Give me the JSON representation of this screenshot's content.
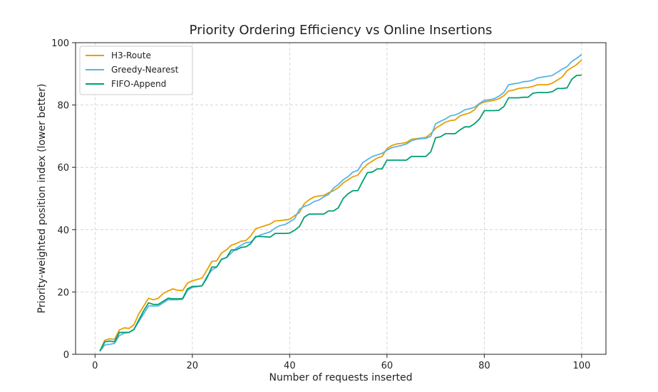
{
  "chart_data": {
    "type": "line",
    "title": "Priority Ordering Efficiency vs Online Insertions",
    "xlabel": "Number of requests inserted",
    "ylabel": "Priority-weighted position index (lower better)",
    "xlim": [
      1,
      100
    ],
    "ylim": [
      0,
      100
    ],
    "xticks": [
      0,
      20,
      40,
      60,
      80,
      100
    ],
    "yticks": [
      0,
      20,
      40,
      60,
      80,
      100
    ],
    "grid": true,
    "legend_position": "top-left",
    "series": [
      {
        "name": "H3-Route",
        "color": "#E69F00",
        "x": [
          1,
          2,
          3,
          4,
          5,
          6,
          7,
          8,
          9,
          10,
          11,
          12,
          13,
          14,
          15,
          16,
          17,
          18,
          19,
          20,
          21,
          22,
          23,
          24,
          25,
          26,
          27,
          28,
          29,
          30,
          31,
          32,
          33,
          34,
          35,
          36,
          37,
          38,
          39,
          40,
          41,
          42,
          43,
          44,
          45,
          46,
          47,
          48,
          49,
          50,
          51,
          52,
          53,
          54,
          55,
          56,
          57,
          58,
          59,
          60,
          61,
          62,
          63,
          64,
          65,
          66,
          67,
          68,
          69,
          70,
          71,
          72,
          73,
          74,
          75,
          76,
          77,
          78,
          79,
          80,
          81,
          82,
          83,
          84,
          85,
          86,
          87,
          88,
          89,
          90,
          91,
          92,
          93,
          94,
          95,
          96,
          97,
          98,
          99,
          100
        ],
        "values": [
          1.0,
          4.5,
          5.0,
          4.8,
          7.8,
          8.5,
          8.3,
          9.5,
          13.0,
          15.5,
          18.0,
          17.5,
          18.0,
          19.5,
          20.3,
          21.0,
          20.5,
          20.5,
          22.8,
          23.6,
          24.0,
          24.5,
          27.0,
          29.8,
          30.0,
          32.5,
          33.5,
          35.0,
          35.5,
          36.3,
          36.5,
          38.0,
          40.3,
          40.8,
          41.3,
          41.8,
          42.8,
          42.9,
          43.1,
          43.3,
          44.5,
          45.5,
          48.3,
          49.6,
          50.5,
          50.8,
          51.0,
          51.8,
          52.5,
          53.5,
          55.0,
          56.0,
          57.0,
          57.5,
          59.5,
          61.0,
          62.0,
          63.0,
          63.5,
          66.0,
          67.0,
          67.5,
          67.7,
          68.0,
          69.0,
          69.2,
          69.4,
          69.6,
          70.8,
          72.5,
          73.5,
          74.5,
          75.0,
          75.2,
          76.5,
          77.0,
          77.5,
          78.5,
          80.3,
          81.0,
          81.2,
          81.5,
          82.0,
          83.0,
          84.5,
          84.8,
          85.3,
          85.5,
          85.6,
          86.0,
          86.5,
          86.5,
          86.5,
          87.0,
          88.0,
          89.0,
          91.0,
          92.0,
          93.0,
          94.5
        ]
      },
      {
        "name": "Greedy-Nearest",
        "color": "#56B4E9",
        "x": [
          1,
          2,
          3,
          4,
          5,
          6,
          7,
          8,
          9,
          10,
          11,
          12,
          13,
          14,
          15,
          16,
          17,
          18,
          19,
          20,
          21,
          22,
          23,
          24,
          25,
          26,
          27,
          28,
          29,
          30,
          31,
          32,
          33,
          34,
          35,
          36,
          37,
          38,
          39,
          40,
          41,
          42,
          43,
          44,
          45,
          46,
          47,
          48,
          49,
          50,
          51,
          52,
          53,
          54,
          55,
          56,
          57,
          58,
          59,
          60,
          61,
          62,
          63,
          64,
          65,
          66,
          67,
          68,
          69,
          70,
          71,
          72,
          73,
          74,
          75,
          76,
          77,
          78,
          79,
          80,
          81,
          82,
          83,
          84,
          85,
          86,
          87,
          88,
          89,
          90,
          91,
          92,
          93,
          94,
          95,
          96,
          97,
          98,
          99,
          100
        ],
        "values": [
          1.0,
          3.0,
          3.2,
          3.5,
          6.0,
          6.8,
          7.0,
          8.0,
          10.5,
          13.0,
          15.5,
          15.5,
          15.5,
          16.5,
          17.5,
          17.5,
          17.5,
          17.7,
          20.5,
          21.5,
          21.7,
          22.0,
          25.0,
          27.0,
          28.0,
          30.5,
          31.0,
          32.5,
          34.0,
          35.0,
          35.8,
          36.0,
          37.5,
          38.3,
          38.8,
          39.3,
          40.5,
          41.3,
          41.6,
          42.5,
          43.5,
          46.5,
          47.5,
          48.0,
          49.0,
          49.5,
          50.5,
          51.3,
          53.3,
          54.5,
          56.0,
          57.0,
          58.5,
          59.0,
          61.5,
          62.5,
          63.5,
          64.0,
          64.5,
          65.5,
          66.3,
          66.7,
          67.0,
          67.5,
          68.5,
          69.0,
          69.2,
          69.3,
          70.0,
          74.0,
          74.8,
          75.5,
          76.5,
          76.8,
          77.5,
          78.5,
          78.8,
          79.3,
          80.5,
          81.5,
          81.7,
          82.0,
          82.8,
          84.0,
          86.5,
          86.8,
          87.0,
          87.5,
          87.6,
          88.0,
          88.7,
          89.0,
          89.2,
          89.5,
          90.5,
          91.5,
          92.3,
          94.0,
          95.0,
          96.2
        ]
      },
      {
        "name": "FIFO-Append",
        "color": "#009E73",
        "x": [
          1,
          2,
          3,
          4,
          5,
          6,
          7,
          8,
          9,
          10,
          11,
          12,
          13,
          14,
          15,
          16,
          17,
          18,
          19,
          20,
          21,
          22,
          23,
          24,
          25,
          26,
          27,
          28,
          29,
          30,
          31,
          32,
          33,
          34,
          35,
          36,
          37,
          38,
          39,
          40,
          41,
          42,
          43,
          44,
          45,
          46,
          47,
          48,
          49,
          50,
          51,
          52,
          53,
          54,
          55,
          56,
          57,
          58,
          59,
          60,
          61,
          62,
          63,
          64,
          65,
          66,
          67,
          68,
          69,
          70,
          71,
          72,
          73,
          74,
          75,
          76,
          77,
          78,
          79,
          80,
          81,
          82,
          83,
          84,
          85,
          86,
          87,
          88,
          89,
          90,
          91,
          92,
          93,
          94,
          95,
          96,
          97,
          98,
          99,
          100
        ],
        "values": [
          1.0,
          4.0,
          4.3,
          4.0,
          7.0,
          7.0,
          7.0,
          8.0,
          11.0,
          14.0,
          16.5,
          16.0,
          16.0,
          17.0,
          18.0,
          17.8,
          17.8,
          17.9,
          21.0,
          21.8,
          21.8,
          22.0,
          24.5,
          28.0,
          28.0,
          30.5,
          31.0,
          33.5,
          33.5,
          34.3,
          34.5,
          35.5,
          37.8,
          37.8,
          37.7,
          37.6,
          38.8,
          38.8,
          38.8,
          38.9,
          39.8,
          41.0,
          44.0,
          45.0,
          45.0,
          45.0,
          45.0,
          46.0,
          46.0,
          47.0,
          50.0,
          51.5,
          52.5,
          52.5,
          55.5,
          58.3,
          58.5,
          59.5,
          59.5,
          62.3,
          62.3,
          62.3,
          62.3,
          62.3,
          63.5,
          63.5,
          63.5,
          63.5,
          65.0,
          69.5,
          69.8,
          70.8,
          70.8,
          70.8,
          72.0,
          73.0,
          73.0,
          74.0,
          75.5,
          78.2,
          78.2,
          78.2,
          78.3,
          79.5,
          82.3,
          82.3,
          82.3,
          82.5,
          82.5,
          83.8,
          84.0,
          84.0,
          84.0,
          84.3,
          85.3,
          85.3,
          85.5,
          88.3,
          89.5,
          89.6
        ]
      }
    ]
  }
}
